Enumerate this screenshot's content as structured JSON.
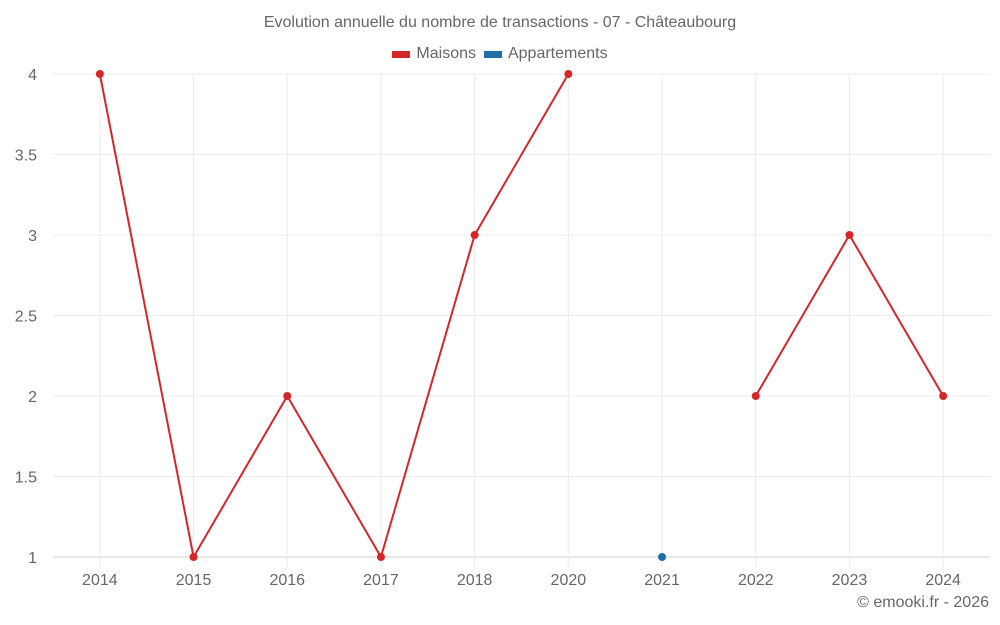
{
  "chart": {
    "title": "Evolution annuelle du nombre de transactions - 07 - Châteaubourg",
    "credits": "© emooki.fr - 2026",
    "legend": [
      {
        "label": "Maisons",
        "color": "#d62728"
      },
      {
        "label": "Appartements",
        "color": "#1f6fa5"
      }
    ]
  },
  "chart_data": {
    "type": "line",
    "title": "Evolution annuelle du nombre de transactions - 07 - Châteaubourg",
    "xlabel": "",
    "ylabel": "",
    "categories": [
      "2014",
      "2015",
      "2016",
      "2017",
      "2018",
      "2020",
      "2021",
      "2022",
      "2023",
      "2024"
    ],
    "yticks": [
      "1",
      "1.5",
      "2",
      "2.5",
      "3",
      "3.5",
      "4"
    ],
    "ylim": [
      1,
      4
    ],
    "grid": true,
    "legend_position": "top",
    "series": [
      {
        "name": "Maisons",
        "color": "#d62728",
        "values": [
          4,
          1,
          2,
          1,
          3,
          4,
          null,
          2,
          3,
          2
        ]
      },
      {
        "name": "Appartements",
        "color": "#1f6fa5",
        "values": [
          null,
          null,
          null,
          null,
          null,
          null,
          1,
          null,
          null,
          null
        ]
      }
    ]
  }
}
